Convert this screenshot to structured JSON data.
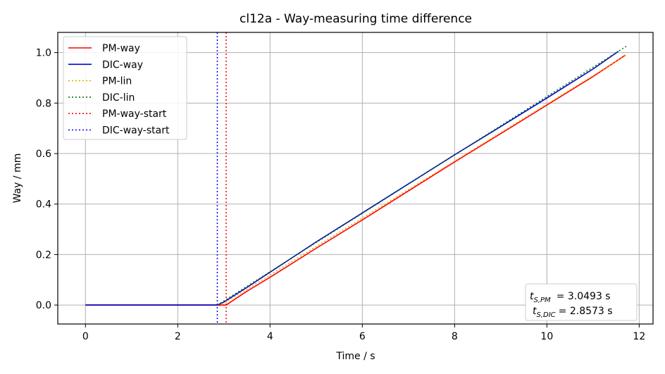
{
  "chart_data": {
    "type": "line",
    "title": "cl12a - Way-measuring time difference",
    "xlabel": "Time / s",
    "ylabel": "Way / mm",
    "xlim": [
      -0.6,
      12.3
    ],
    "ylim": [
      -0.075,
      1.08
    ],
    "xticks": [
      0,
      2,
      4,
      6,
      8,
      10,
      12
    ],
    "xtick_labels": [
      "0",
      "2",
      "4",
      "6",
      "8",
      "10",
      "12"
    ],
    "yticks": [
      0.0,
      0.2,
      0.4,
      0.6,
      0.8,
      1.0
    ],
    "ytick_labels": [
      "0.0",
      "0.2",
      "0.4",
      "0.6",
      "0.8",
      "1.0"
    ],
    "grid": true,
    "legend_position": "top-left",
    "series": [
      {
        "name": "PM-way",
        "color": "#ff0000",
        "style": "solid",
        "x": [
          0,
          1,
          2,
          2.8,
          3.0493,
          3.5,
          4,
          5,
          6,
          7,
          8,
          9,
          10,
          11,
          11.7
        ],
        "y": [
          0,
          0,
          0,
          0,
          0,
          0.055,
          0.11,
          0.225,
          0.337,
          0.452,
          0.567,
          0.679,
          0.792,
          0.905,
          0.99
        ]
      },
      {
        "name": "DIC-way",
        "color": "#0000cc",
        "style": "solid",
        "x": [
          0,
          1,
          2,
          2.8573,
          3.0,
          3.5,
          4,
          5,
          6,
          7,
          8,
          9,
          10,
          11,
          11.55
        ],
        "y": [
          0,
          0,
          0,
          0,
          0.012,
          0.07,
          0.13,
          0.25,
          0.365,
          0.48,
          0.595,
          0.707,
          0.82,
          0.935,
          1.005
        ]
      },
      {
        "name": "PM-lin",
        "color": "#e6a800",
        "style": "dotted",
        "x": [
          2.9,
          11.72
        ],
        "y": [
          -0.005,
          0.99
        ]
      },
      {
        "name": "DIC-lin",
        "color": "#007700",
        "style": "dotted",
        "x": [
          2.86,
          11.72
        ],
        "y": [
          0.0,
          1.025
        ]
      },
      {
        "name": "PM-way-start",
        "color": "#ff0000",
        "style": "dotted-vline",
        "x": 3.0493
      },
      {
        "name": "DIC-way-start",
        "color": "#0000ff",
        "style": "dotted-vline",
        "x": 2.8573
      }
    ],
    "annotation": {
      "position": "bottom-right",
      "pm_label": "S,PM",
      "pm_value": "=  3.0493 s",
      "dic_label": "S,DIC",
      "dic_value": "=  2.8573 s"
    }
  }
}
